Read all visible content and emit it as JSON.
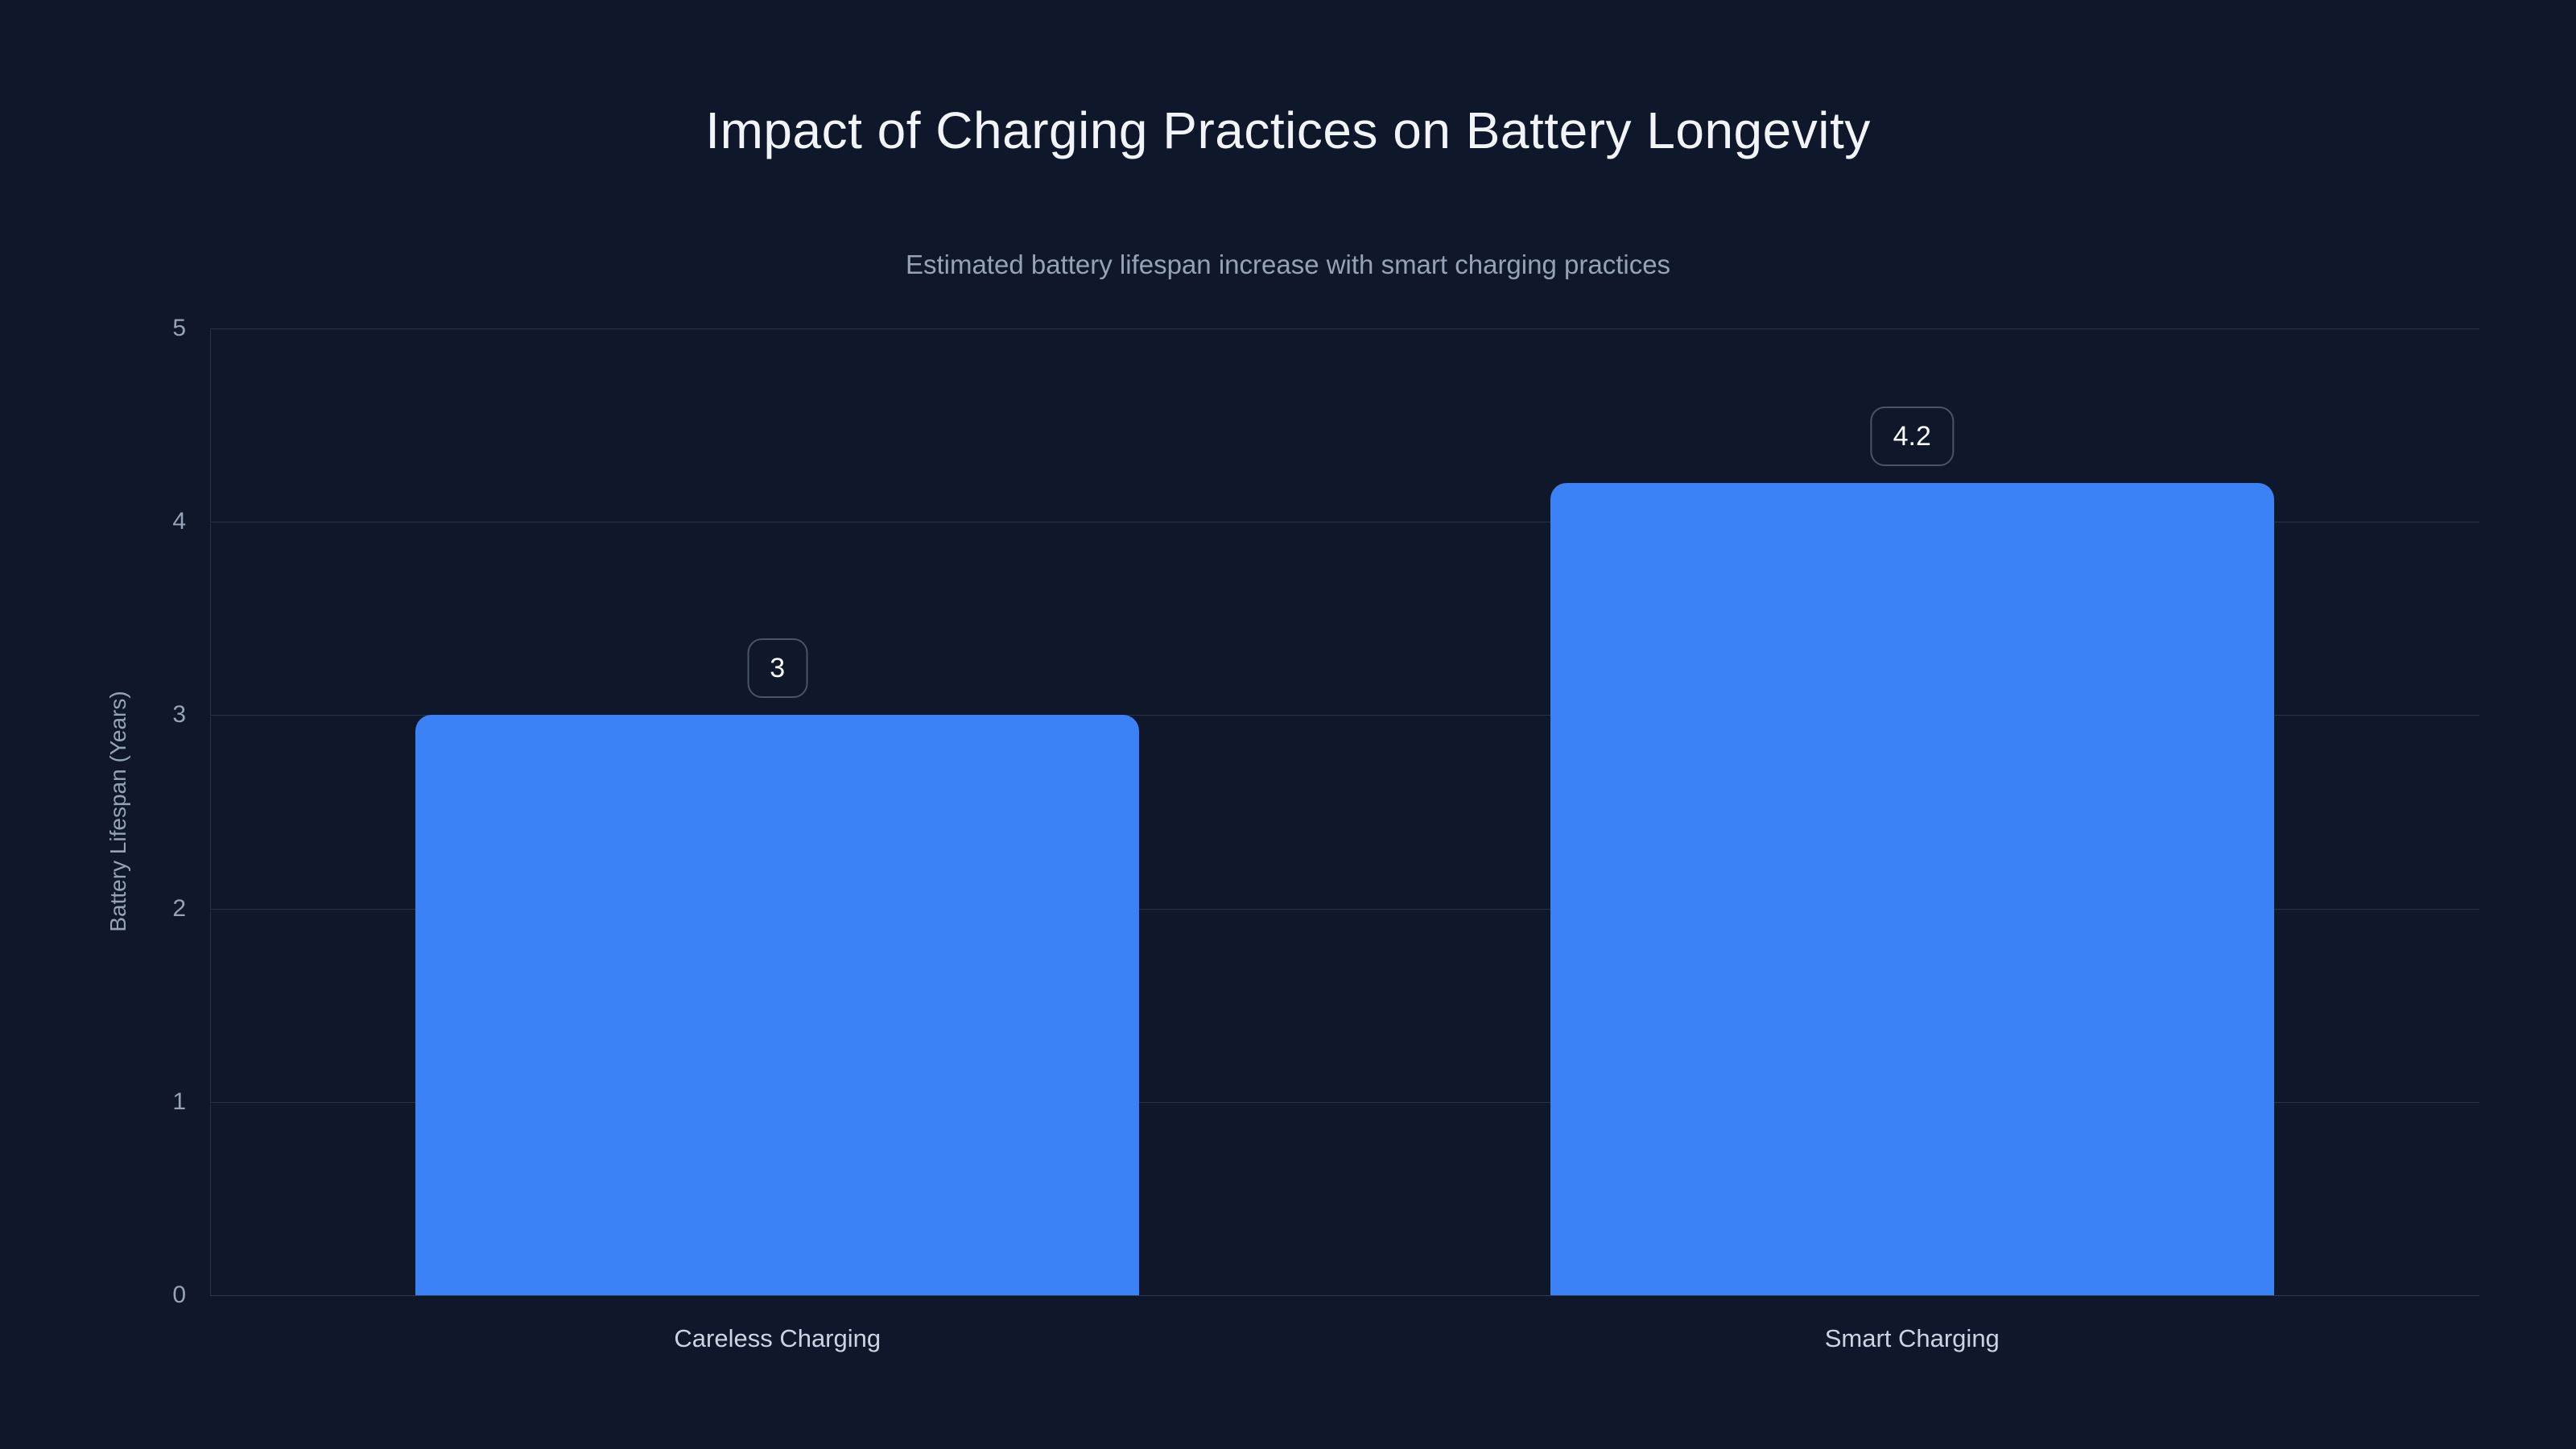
{
  "chart_data": {
    "type": "bar",
    "title": "Impact of Charging Practices on Battery Longevity",
    "subtitle": "Estimated battery lifespan increase with smart charging practices",
    "categories": [
      "Careless Charging",
      "Smart Charging"
    ],
    "values": [
      3,
      4.2
    ],
    "value_labels": [
      "3",
      "4.2"
    ],
    "xlabel": "",
    "ylabel": "Battery Lifespan (Years)",
    "ylim": [
      0,
      5
    ],
    "yticks": [
      0,
      1,
      2,
      3,
      4,
      5
    ],
    "grid": "horizontal-only",
    "legend": "none",
    "bar_corner_radius_px": 20,
    "colors": {
      "background": "#0f172a",
      "bar": "#3b82f6",
      "title_text": "#f1f5f9",
      "subtitle_text": "#94a3b8",
      "axis_text": "#94a3b8",
      "category_text": "#cbd5e1",
      "gridline": "#273349",
      "baseline": "#2e3a52",
      "badge_border": "#475569",
      "badge_text": "#f8fafc"
    }
  }
}
